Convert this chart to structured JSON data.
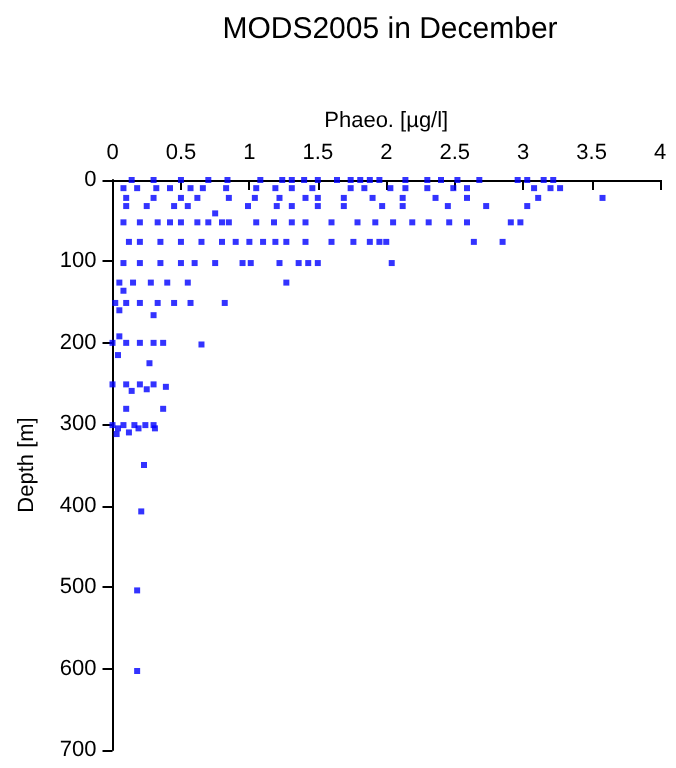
{
  "chart_data": {
    "type": "scatter",
    "title": "MODS2005 in December",
    "xlabel": "Phaeo. [µg/l]",
    "ylabel": "Depth [m]",
    "xlim": [
      0,
      4
    ],
    "xticks": [
      0,
      0.5,
      1,
      1.5,
      2,
      2.5,
      3,
      3.5,
      4
    ],
    "ylim": [
      700,
      0
    ],
    "yticks": [
      0,
      100,
      200,
      300,
      400,
      500,
      600,
      700
    ],
    "grid": false,
    "marker": "square",
    "series": [
      {
        "color": "#0000ff",
        "x": [
          0.14,
          0.3,
          0.5,
          0.7,
          0.84,
          1.08,
          1.24,
          1.31,
          1.4,
          1.5,
          1.64,
          1.74,
          1.81,
          1.88,
          1.95,
          2.14,
          2.3,
          2.4,
          2.52,
          2.68,
          2.96,
          3.03,
          3.15,
          3.22,
          0.08,
          0.18,
          0.32,
          0.42,
          0.57,
          0.66,
          0.83,
          1.05,
          1.19,
          1.31,
          1.46,
          1.74,
          1.84,
          2.03,
          2.14,
          2.3,
          2.49,
          2.59,
          3.08,
          3.2,
          3.27,
          0.1,
          0.3,
          0.5,
          0.62,
          0.85,
          1.04,
          1.22,
          1.41,
          1.5,
          1.69,
          1.9,
          2.12,
          2.36,
          2.59,
          3.11,
          3.58,
          0.1,
          0.25,
          0.45,
          0.55,
          0.99,
          1.2,
          1.31,
          1.5,
          1.69,
          1.97,
          2.12,
          2.45,
          2.73,
          3.03,
          0.75,
          0.08,
          0.2,
          0.33,
          0.42,
          0.5,
          0.62,
          0.7,
          0.8,
          0.85,
          1.05,
          1.18,
          1.31,
          1.41,
          1.6,
          1.79,
          1.92,
          2.05,
          2.19,
          2.31,
          2.46,
          2.59,
          2.91,
          2.98,
          0.12,
          0.2,
          0.35,
          0.5,
          0.65,
          0.8,
          0.9,
          1.0,
          1.1,
          1.19,
          1.27,
          1.41,
          1.6,
          1.76,
          1.88,
          1.95,
          2.0,
          2.64,
          2.85,
          0.08,
          0.2,
          0.35,
          0.5,
          0.6,
          0.75,
          0.95,
          1.01,
          1.22,
          1.36,
          1.43,
          1.5,
          2.04,
          0.05,
          0.15,
          0.28,
          0.4,
          0.55,
          1.27,
          0.08,
          0.02,
          0.1,
          0.2,
          0.33,
          0.45,
          0.57,
          0.82,
          0.05,
          0.3,
          0.05,
          0,
          0.1,
          0.2,
          0.3,
          0.37,
          0.65,
          0.04,
          0.27,
          0,
          0.1,
          0.2,
          0.3,
          0.39,
          0.25,
          0.14,
          0.1,
          0.37,
          0,
          0.08,
          0.16,
          0.24,
          0.3,
          0.04,
          0.19,
          0.31,
          0.12,
          0.03,
          0.23,
          0.21,
          0.18,
          0.18
        ],
        "values": [
          0,
          0,
          0,
          0,
          0,
          0,
          0,
          0,
          0,
          0,
          0,
          0,
          0,
          0,
          0,
          0,
          0,
          0,
          0,
          0,
          0,
          0,
          0,
          0,
          10,
          10,
          10,
          10,
          10,
          10,
          10,
          10,
          10,
          10,
          10,
          10,
          10,
          10,
          10,
          10,
          10,
          10,
          10,
          10,
          10,
          22,
          22,
          22,
          22,
          22,
          22,
          22,
          22,
          22,
          22,
          22,
          22,
          22,
          22,
          22,
          22,
          32,
          32,
          32,
          32,
          32,
          32,
          32,
          32,
          32,
          32,
          32,
          32,
          32,
          32,
          41,
          52,
          52,
          52,
          52,
          52,
          52,
          52,
          52,
          52,
          52,
          52,
          52,
          52,
          52,
          52,
          52,
          52,
          52,
          52,
          52,
          52,
          52,
          52,
          76,
          76,
          76,
          76,
          76,
          76,
          76,
          76,
          76,
          76,
          76,
          76,
          76,
          76,
          76,
          76,
          76,
          76,
          76,
          102,
          102,
          102,
          102,
          102,
          102,
          102,
          102,
          102,
          102,
          102,
          102,
          102,
          126,
          126,
          126,
          126,
          126,
          126,
          136,
          151,
          151,
          151,
          151,
          151,
          151,
          151,
          160,
          166,
          192,
          200,
          200,
          200,
          200,
          200,
          202,
          215,
          225,
          251,
          251,
          251,
          251,
          254,
          257,
          259,
          281,
          281,
          301,
          301,
          301,
          301,
          301,
          305,
          305,
          305,
          310,
          312,
          350,
          407,
          504,
          603
        ]
      }
    ]
  }
}
